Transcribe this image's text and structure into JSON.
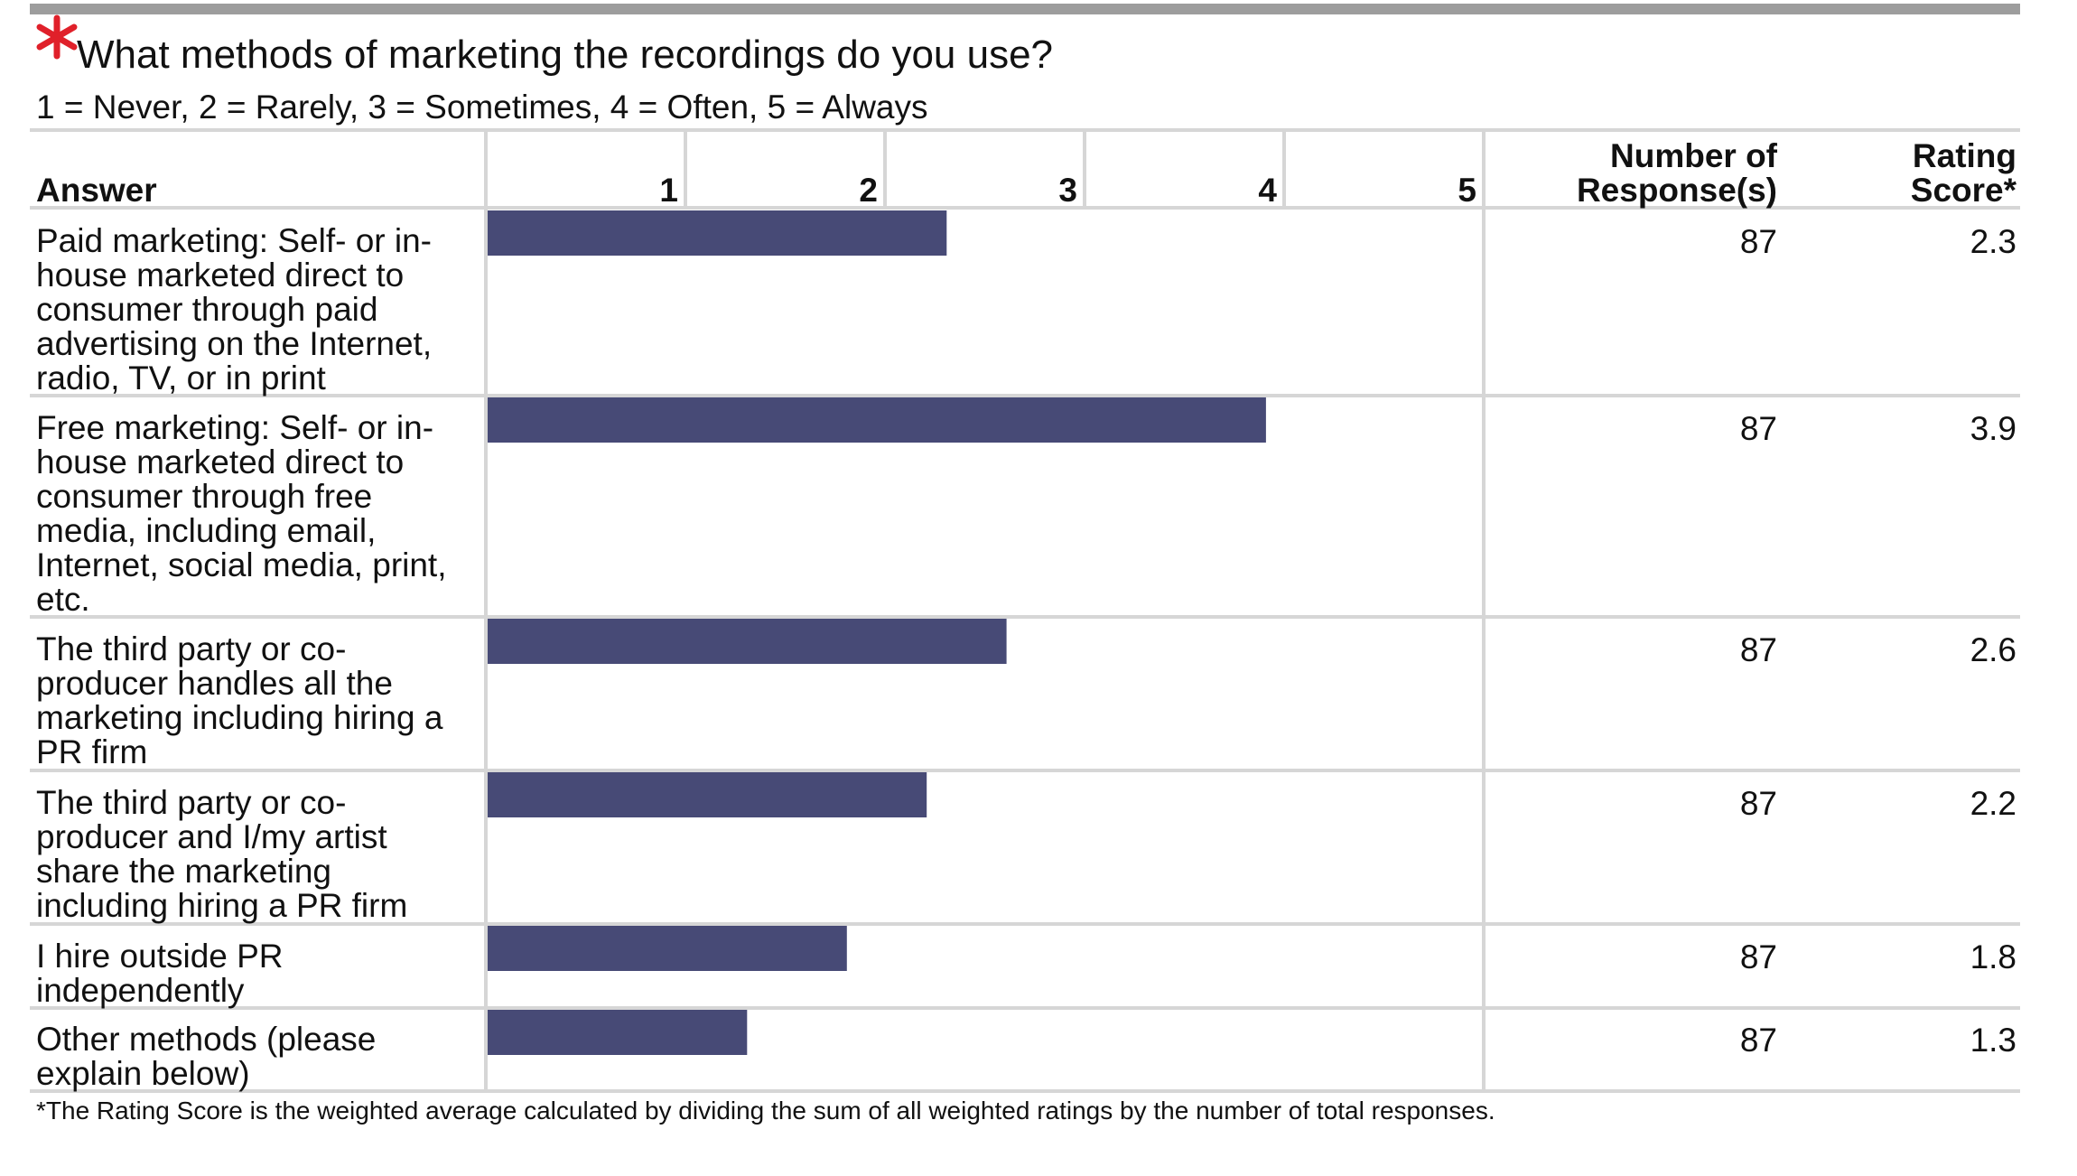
{
  "question": {
    "title": "What methods of marketing the recordings do you use?",
    "scale_legend": "1 = Never, 2 = Rarely, 3 = Sometimes, 4 = Often, 5 = Always",
    "required_color": "#e0202a"
  },
  "table": {
    "answer_header": "Answer",
    "responses_header_line1": "Number of",
    "responses_header_line2": "Response(s)",
    "score_header_line1": "Rating",
    "score_header_line2": "Score*",
    "footnote": "*The Rating Score is the weighted average calculated by dividing the sum of all weighted ratings by the number of total responses."
  },
  "chart_data": {
    "type": "bar",
    "orientation": "horizontal",
    "scale_ticks": [
      "1",
      "2",
      "3",
      "4",
      "5"
    ],
    "xlim": [
      0,
      5
    ],
    "bar_color": "#474a76",
    "categories": [
      "Paid marketing: Self- or in-house marketed direct to consumer through paid advertising on the Internet, radio, TV, or in print",
      "Free marketing: Self- or in-house marketed direct to consumer through free media, including email, Internet, social media, print, etc.",
      "The third party or co-producer handles all the marketing including hiring a PR firm",
      "The third party or co-producer and I/my artist share the marketing including hiring a PR firm",
      "I hire outside PR independently",
      "Other methods (please explain below)"
    ],
    "values": [
      2.3,
      3.9,
      2.6,
      2.2,
      1.8,
      1.3
    ],
    "responses": [
      "87",
      "87",
      "87",
      "87",
      "87",
      "87"
    ],
    "scores": [
      "2.3",
      "3.9",
      "2.6",
      "2.2",
      "1.8",
      "1.3"
    ]
  }
}
